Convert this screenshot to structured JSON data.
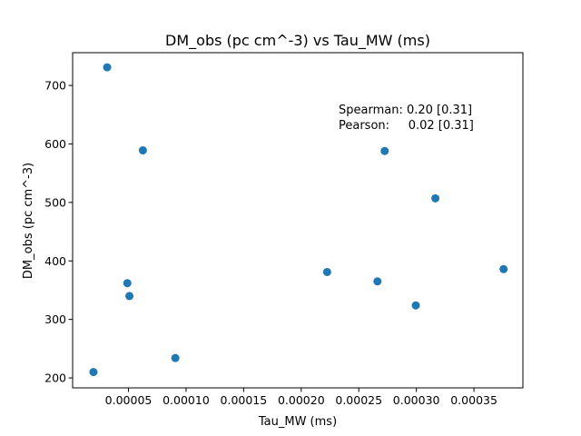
{
  "chart_data": {
    "type": "scatter",
    "title": "DM_obs (pc cm^-3) vs Tau_MW (ms)",
    "xlabel": "Tau_MW (ms)",
    "ylabel": "DM_obs (pc cm^-3)",
    "xlim": [
      1.5e-06,
      0.0003925
    ],
    "ylim": [
      183,
      756
    ],
    "xticks": [
      5e-05,
      0.0001,
      0.00015,
      0.0002,
      0.00025,
      0.0003,
      0.00035
    ],
    "xtick_labels": [
      "0.00005",
      "0.00010",
      "0.00015",
      "0.00020",
      "0.00025",
      "0.00030",
      "0.00035"
    ],
    "yticks": [
      200,
      300,
      400,
      500,
      600,
      700
    ],
    "ytick_labels": [
      "200",
      "300",
      "400",
      "500",
      "600",
      "700"
    ],
    "grid": false,
    "color": "#1f77b4",
    "points": [
      {
        "x": 1.96e-05,
        "y": 210
      },
      {
        "x": 3.15e-05,
        "y": 731
      },
      {
        "x": 4.9e-05,
        "y": 362
      },
      {
        "x": 5.08e-05,
        "y": 340
      },
      {
        "x": 6.25e-05,
        "y": 589
      },
      {
        "x": 9.07e-05,
        "y": 234
      },
      {
        "x": 0.0002225,
        "y": 381
      },
      {
        "x": 0.0002662,
        "y": 365
      },
      {
        "x": 0.0002725,
        "y": 588
      },
      {
        "x": 0.0002995,
        "y": 324
      },
      {
        "x": 0.0003165,
        "y": 507
      },
      {
        "x": 0.0003757,
        "y": 386
      }
    ],
    "annotations": [
      {
        "text": "Spearman: 0.20 [0.31]"
      },
      {
        "text": "Pearson:     0.02 [0.31]"
      }
    ]
  }
}
